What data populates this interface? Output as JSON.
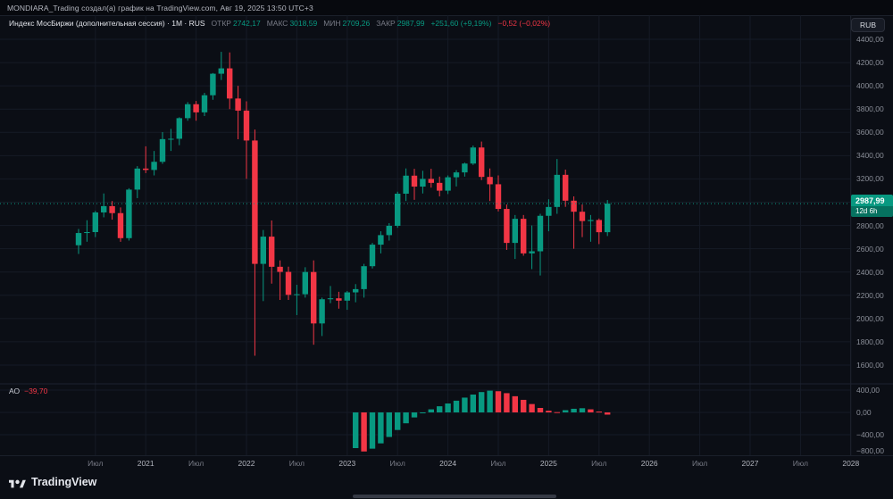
{
  "header": {
    "attribution": "MONDIARA_Trading создал(а) график на TradingView.com, Авг 19, 2025 13:50 UTC+3"
  },
  "toolbar": {
    "currency_button": "RUB"
  },
  "legend": {
    "symbol_title": "Индекс МосБиржи (дополнительная сессия) · 1M · RUS",
    "open_label": "ОТКР",
    "open": "2742,17",
    "high_label": "МАКС",
    "high": "3018,59",
    "low_label": "МИН",
    "low": "2709,26",
    "close_label": "ЗАКР",
    "close": "2987,99",
    "change": "+251,60 (+9,19%)",
    "tick_change": "−0,52 (−0,02%)"
  },
  "indicator": {
    "name": "АО",
    "value": "−39,70"
  },
  "price_scale": {
    "last_price": "2987,99",
    "countdown": "12d 6h",
    "ticks": [
      {
        "value": 4400,
        "label": "4400,00"
      },
      {
        "value": 4200,
        "label": "4200,00"
      },
      {
        "value": 4000,
        "label": "4000,00"
      },
      {
        "value": 3800,
        "label": "3800,00"
      },
      {
        "value": 3600,
        "label": "3600,00"
      },
      {
        "value": 3400,
        "label": "3400,00"
      },
      {
        "value": 3200,
        "label": "3200,00"
      },
      {
        "value": 3000,
        "label": "3000,00"
      },
      {
        "value": 2800,
        "label": "2800,00"
      },
      {
        "value": 2600,
        "label": "2600,00"
      },
      {
        "value": 2400,
        "label": "2400,00"
      },
      {
        "value": 2200,
        "label": "2200,00"
      },
      {
        "value": 2000,
        "label": "2000,00"
      },
      {
        "value": 1800,
        "label": "1800,00"
      },
      {
        "value": 1600,
        "label": "1600,00"
      }
    ]
  },
  "ao_scale": {
    "ticks": [
      {
        "value": 400,
        "label": "400,00"
      },
      {
        "value": 0,
        "label": "0,00"
      },
      {
        "value": -400,
        "label": "−400,00"
      },
      {
        "value": -800,
        "label": "−800,00"
      }
    ]
  },
  "time_axis": {
    "ticks": [
      {
        "t": "2020-07",
        "label": "Июл",
        "type": "month"
      },
      {
        "t": "2021-01",
        "label": "2021",
        "type": "year"
      },
      {
        "t": "2021-07",
        "label": "Июл",
        "type": "month"
      },
      {
        "t": "2022-01",
        "label": "2022",
        "type": "year"
      },
      {
        "t": "2022-07",
        "label": "Июл",
        "type": "month"
      },
      {
        "t": "2023-01",
        "label": "2023",
        "type": "year"
      },
      {
        "t": "2023-07",
        "label": "Июл",
        "type": "month"
      },
      {
        "t": "2024-01",
        "label": "2024",
        "type": "year"
      },
      {
        "t": "2024-07",
        "label": "Июл",
        "type": "month"
      },
      {
        "t": "2025-01",
        "label": "2025",
        "type": "year"
      },
      {
        "t": "2025-07",
        "label": "Июл",
        "type": "month"
      },
      {
        "t": "2026-01",
        "label": "2026",
        "type": "year"
      },
      {
        "t": "2026-07",
        "label": "Июл",
        "type": "month"
      },
      {
        "t": "2027-01",
        "label": "2027",
        "type": "year"
      },
      {
        "t": "2027-07",
        "label": "Июл",
        "type": "month"
      },
      {
        "t": "2028-01",
        "label": "2028",
        "type": "year"
      }
    ]
  },
  "branding": {
    "logo_text": "TradingView"
  },
  "colors": {
    "background": "#0b0e15",
    "up": "#089981",
    "down": "#f23645",
    "grid": "#161b26",
    "pane_border": "#1d2230",
    "axis_text": "#8a8e98",
    "text": "#d1d4dc",
    "text_muted": "#787b86"
  },
  "chart_data": {
    "type": "candlestick",
    "title": "Индекс МосБиржи (дополнительная сессия)",
    "interval": "1M",
    "exchange": "RUS",
    "currency": "RUB",
    "last_price": 2987.99,
    "last_bar": {
      "open": 2742.17,
      "high": 3018.59,
      "low": 2709.26,
      "close": 2987.99,
      "change": "+251,60 (+9,19%)"
    },
    "y_axis": {
      "min": 1440,
      "max": 4600,
      "tick_step": 200,
      "grid": true
    },
    "x_range": {
      "from": "2020-05",
      "to": "2028-01"
    },
    "candles": [
      [
        "2020-05",
        2630,
        2770,
        2555,
        2735
      ],
      [
        "2020-06",
        2735,
        2845,
        2660,
        2743
      ],
      [
        "2020-07",
        2743,
        2925,
        2700,
        2912
      ],
      [
        "2020-08",
        2912,
        3075,
        2870,
        2966
      ],
      [
        "2020-09",
        2966,
        3010,
        2850,
        2906
      ],
      [
        "2020-10",
        2906,
        2955,
        2660,
        2691
      ],
      [
        "2020-11",
        2691,
        3120,
        2670,
        3108
      ],
      [
        "2020-12",
        3108,
        3310,
        3035,
        3289
      ],
      [
        "2021-01",
        3289,
        3480,
        3250,
        3277
      ],
      [
        "2021-02",
        3277,
        3440,
        3230,
        3347
      ],
      [
        "2021-03",
        3347,
        3602,
        3330,
        3542
      ],
      [
        "2021-04",
        3542,
        3630,
        3440,
        3545
      ],
      [
        "2021-05",
        3545,
        3730,
        3490,
        3722
      ],
      [
        "2021-06",
        3722,
        3860,
        3700,
        3842
      ],
      [
        "2021-07",
        3842,
        3870,
        3700,
        3772
      ],
      [
        "2021-08",
        3772,
        3940,
        3740,
        3919
      ],
      [
        "2021-09",
        3919,
        4110,
        3880,
        4104
      ],
      [
        "2021-10",
        4104,
        4292,
        4050,
        4150
      ],
      [
        "2021-11",
        4150,
        4287,
        3800,
        3891
      ],
      [
        "2021-12",
        3891,
        4000,
        3541,
        3787
      ],
      [
        "2022-01",
        3787,
        3867,
        3200,
        3530
      ],
      [
        "2022-02",
        3530,
        3624,
        1681,
        2470
      ],
      [
        "2022-03",
        2470,
        2761,
        2150,
        2704
      ],
      [
        "2022-04",
        2704,
        2843,
        2300,
        2445
      ],
      [
        "2022-05",
        2445,
        2500,
        2160,
        2401
      ],
      [
        "2022-06",
        2401,
        2446,
        2160,
        2204
      ],
      [
        "2022-07",
        2204,
        2290,
        2030,
        2209
      ],
      [
        "2022-08",
        2209,
        2441,
        2180,
        2400
      ],
      [
        "2022-09",
        2400,
        2500,
        1775,
        1958
      ],
      [
        "2022-10",
        1958,
        2180,
        1850,
        2166
      ],
      [
        "2022-11",
        2166,
        2280,
        2132,
        2174
      ],
      [
        "2022-12",
        2174,
        2230,
        2085,
        2154
      ],
      [
        "2023-01",
        2154,
        2237,
        2075,
        2225
      ],
      [
        "2023-02",
        2225,
        2296,
        2140,
        2253
      ],
      [
        "2023-03",
        2253,
        2470,
        2180,
        2450
      ],
      [
        "2023-04",
        2450,
        2650,
        2430,
        2635
      ],
      [
        "2023-05",
        2635,
        2750,
        2560,
        2717
      ],
      [
        "2023-06",
        2717,
        2820,
        2670,
        2797
      ],
      [
        "2023-07",
        2797,
        3090,
        2780,
        3073
      ],
      [
        "2023-08",
        3073,
        3290,
        3010,
        3228
      ],
      [
        "2023-09",
        3228,
        3287,
        3020,
        3134
      ],
      [
        "2023-10",
        3134,
        3270,
        3075,
        3200
      ],
      [
        "2023-11",
        3200,
        3287,
        3125,
        3166
      ],
      [
        "2023-12",
        3166,
        3220,
        3050,
        3099
      ],
      [
        "2024-01",
        3099,
        3230,
        3070,
        3214
      ],
      [
        "2024-02",
        3214,
        3275,
        3135,
        3256
      ],
      [
        "2024-03",
        3256,
        3340,
        3220,
        3332
      ],
      [
        "2024-04",
        3332,
        3487,
        3320,
        3470
      ],
      [
        "2024-05",
        3470,
        3521,
        3190,
        3217
      ],
      [
        "2024-06",
        3217,
        3290,
        3010,
        3154
      ],
      [
        "2024-07",
        3154,
        3230,
        2920,
        2942
      ],
      [
        "2024-08",
        2942,
        2980,
        2590,
        2650
      ],
      [
        "2024-09",
        2650,
        2890,
        2512,
        2857
      ],
      [
        "2024-10",
        2857,
        2890,
        2540,
        2560
      ],
      [
        "2024-11",
        2560,
        2800,
        2425,
        2578
      ],
      [
        "2024-12",
        2578,
        2900,
        2370,
        2883
      ],
      [
        "2025-01",
        2883,
        3025,
        2750,
        2959
      ],
      [
        "2025-02",
        2959,
        3371,
        2900,
        3235
      ],
      [
        "2025-03",
        3235,
        3280,
        2960,
        3013
      ],
      [
        "2025-04",
        3013,
        3050,
        2600,
        2918
      ],
      [
        "2025-05",
        2918,
        2980,
        2700,
        2838
      ],
      [
        "2025-06",
        2838,
        2890,
        2660,
        2847
      ],
      [
        "2025-07",
        2847,
        2860,
        2640,
        2742
      ],
      [
        "2025-08",
        2742.17,
        3018.59,
        2709.26,
        2987.99
      ]
    ],
    "indicator": {
      "type": "histogram",
      "name": "AO (Awesome Oscillator)",
      "last_value": -39.7,
      "y_ticks": [
        400,
        0,
        -400,
        -800
      ],
      "values": [
        [
          "2023-02",
          -640
        ],
        [
          "2023-03",
          -700
        ],
        [
          "2023-04",
          -650
        ],
        [
          "2023-05",
          -555
        ],
        [
          "2023-06",
          -440
        ],
        [
          "2023-07",
          -315
        ],
        [
          "2023-08",
          -195
        ],
        [
          "2023-09",
          -90
        ],
        [
          "2023-10",
          -10
        ],
        [
          "2023-11",
          55
        ],
        [
          "2023-12",
          110
        ],
        [
          "2024-01",
          160
        ],
        [
          "2024-02",
          210
        ],
        [
          "2024-03",
          265
        ],
        [
          "2024-04",
          320
        ],
        [
          "2024-05",
          365
        ],
        [
          "2024-06",
          390
        ],
        [
          "2024-07",
          380
        ],
        [
          "2024-08",
          345
        ],
        [
          "2024-09",
          290
        ],
        [
          "2024-10",
          225
        ],
        [
          "2024-11",
          150
        ],
        [
          "2024-12",
          80
        ],
        [
          "2025-01",
          30
        ],
        [
          "2025-02",
          5
        ],
        [
          "2025-03",
          40
        ],
        [
          "2025-04",
          65
        ],
        [
          "2025-05",
          75
        ],
        [
          "2025-06",
          55
        ],
        [
          "2025-07",
          15
        ],
        [
          "2025-08",
          -39.7
        ]
      ]
    }
  }
}
